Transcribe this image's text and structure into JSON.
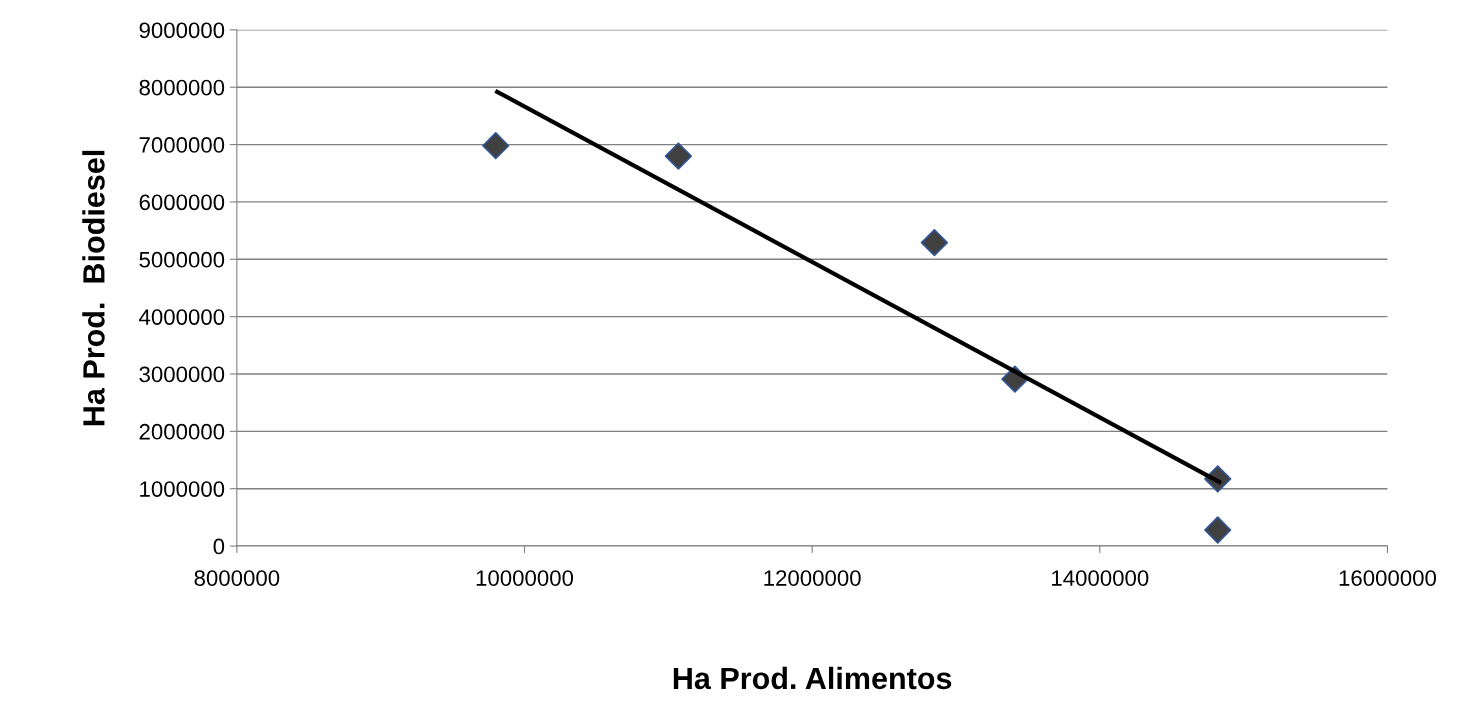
{
  "chart_data": {
    "type": "scatter",
    "xlabel": "Ha Prod. Alimentos",
    "ylabel": "Ha Prod.  Biodiesel",
    "series": [
      {
        "color": "#404040",
        "marker": "diamond",
        "x": [
          9800000,
          11070000,
          12850000,
          13410000,
          14820000,
          14820000
        ],
        "values": [
          6980000,
          6800000,
          5290000,
          2910000,
          1170000,
          280000
        ]
      },
      {
        "type": "line",
        "color": "#000000",
        "marker": "none",
        "line_style": "solid",
        "x": [
          9810000,
          14830000
        ],
        "values": [
          7920000,
          1120000
        ]
      }
    ],
    "xlim": [
      8000000,
      16000000
    ],
    "xticks": [
      8000000,
      10000000,
      12000000,
      14000000,
      16000000
    ],
    "ylim": [
      0,
      9000000
    ],
    "yticks": [
      0,
      1000000,
      2000000,
      3000000,
      4000000,
      5000000,
      6000000,
      7000000,
      8000000,
      9000000
    ],
    "grid": "y",
    "legend": false
  }
}
